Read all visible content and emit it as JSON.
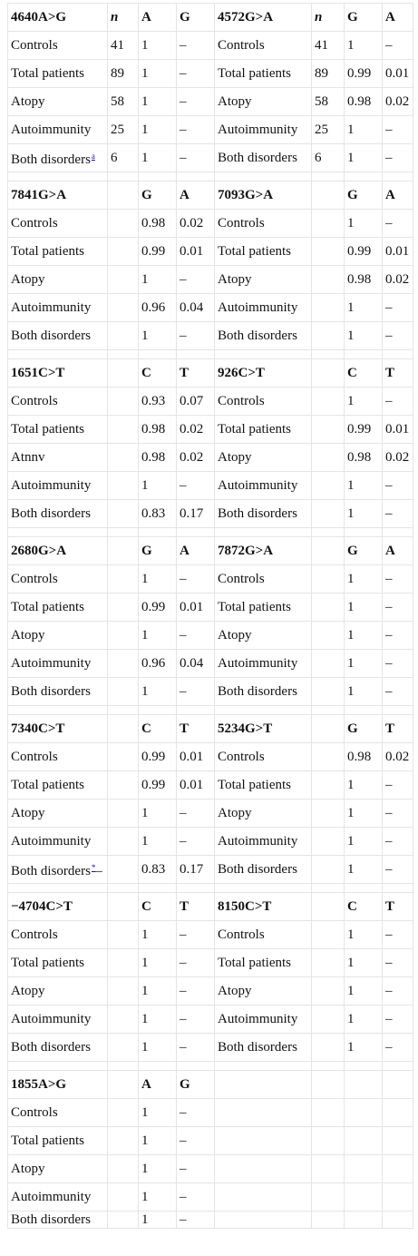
{
  "blocks": [
    {
      "left": {
        "snp": "4640A>G",
        "n_header": "n",
        "a1": "A",
        "a2": "G"
      },
      "right": {
        "snp": "4572G>A",
        "n_header": "n",
        "a1": "G",
        "a2": "A"
      },
      "rows": [
        {
          "l_label": "Controls",
          "l_n": "41",
          "l_v1": "1",
          "l_v2": "–",
          "r_label": "Controls",
          "r_n": "41",
          "r_v1": "1",
          "r_v2": "–"
        },
        {
          "l_label": "Total patients",
          "l_n": "89",
          "l_v1": "1",
          "l_v2": "–",
          "r_label": "Total patients",
          "r_n": "89",
          "r_v1": "0.99",
          "r_v2": "0.01"
        },
        {
          "l_label": "Atopy",
          "l_n": "58",
          "l_v1": "1",
          "l_v2": "–",
          "r_label": "Atopy",
          "r_n": "58",
          "r_v1": "0.98",
          "r_v2": "0.02"
        },
        {
          "l_label": "Autoimmunity",
          "l_n": "25",
          "l_v1": "1",
          "l_v2": "–",
          "r_label": "Autoimmunity",
          "r_n": "25",
          "r_v1": "1",
          "r_v2": "–"
        },
        {
          "l_label": "Both disorders",
          "l_note": "a",
          "l_suffix": "",
          "l_n": "6",
          "l_v1": "1",
          "l_v2": "–",
          "r_label": "Both disorders",
          "r_n": "6",
          "r_v1": "1",
          "r_v2": "–"
        }
      ]
    },
    {
      "left": {
        "snp": "7841G>A",
        "n_header": "",
        "a1": "G",
        "a2": "A"
      },
      "right": {
        "snp": "7093G>A",
        "n_header": "",
        "a1": "G",
        "a2": "A"
      },
      "rows": [
        {
          "l_label": "Controls",
          "l_n": "",
          "l_v1": "0.98",
          "l_v2": "0.02",
          "r_label": "Controls",
          "r_n": "",
          "r_v1": "1",
          "r_v2": "–"
        },
        {
          "l_label": "Total patients",
          "l_n": "",
          "l_v1": "0.99",
          "l_v2": "0.01",
          "r_label": "Total patients",
          "r_n": "",
          "r_v1": "0.99",
          "r_v2": "0.01"
        },
        {
          "l_label": "Atopy",
          "l_n": "",
          "l_v1": "1",
          "l_v2": "–",
          "r_label": "Atopy",
          "r_n": "",
          "r_v1": "0.98",
          "r_v2": "0.02"
        },
        {
          "l_label": "Autoimmunity",
          "l_n": "",
          "l_v1": "0.96",
          "l_v2": "0.04",
          "r_label": "Autoimmunity",
          "r_n": "",
          "r_v1": "1",
          "r_v2": "–"
        },
        {
          "l_label": "Both disorders",
          "l_n": "",
          "l_v1": "1",
          "l_v2": "–",
          "r_label": "Both disorders",
          "r_n": "",
          "r_v1": "1",
          "r_v2": "–"
        }
      ]
    },
    {
      "left": {
        "snp": "1651C>T",
        "n_header": "",
        "a1": "C",
        "a2": "T"
      },
      "right": {
        "snp": "926C>T",
        "n_header": "",
        "a1": "C",
        "a2": "T"
      },
      "rows": [
        {
          "l_label": "Controls",
          "l_n": "",
          "l_v1": "0.93",
          "l_v2": "0.07",
          "r_label": "Controls",
          "r_n": "",
          "r_v1": "1",
          "r_v2": "–"
        },
        {
          "l_label": "Total patients",
          "l_n": "",
          "l_v1": "0.98",
          "l_v2": "0.02",
          "r_label": "Total patients",
          "r_n": "",
          "r_v1": "0.99",
          "r_v2": "0.01"
        },
        {
          "l_label": "Atnnv",
          "l_n": "",
          "l_v1": "0.98",
          "l_v2": "0.02",
          "r_label": "Atopy",
          "r_n": "",
          "r_v1": "0.98",
          "r_v2": "0.02"
        },
        {
          "l_label": "Autoimmunity",
          "l_n": "",
          "l_v1": "1",
          "l_v2": "–",
          "r_label": "Autoimmunity",
          "r_n": "",
          "r_v1": "1",
          "r_v2": "–"
        },
        {
          "l_label": "Both disorders",
          "l_n": "",
          "l_v1": "0.83",
          "l_v2": "0.17",
          "r_label": "Both disorders",
          "r_n": "",
          "r_v1": "1",
          "r_v2": "–"
        }
      ]
    },
    {
      "left": {
        "snp": "2680G>A",
        "n_header": "",
        "a1": "G",
        "a2": "A"
      },
      "right": {
        "snp": "7872G>A",
        "n_header": "",
        "a1": "G",
        "a2": "A"
      },
      "rows": [
        {
          "l_label": "Controls",
          "l_n": "",
          "l_v1": "1",
          "l_v2": "–",
          "r_label": "Controls",
          "r_n": "",
          "r_v1": "1",
          "r_v2": "–"
        },
        {
          "l_label": "Total patients",
          "l_n": "",
          "l_v1": "0.99",
          "l_v2": "0.01",
          "r_label": "Total patients",
          "r_n": "",
          "r_v1": "1",
          "r_v2": "–"
        },
        {
          "l_label": "Atopy",
          "l_n": "",
          "l_v1": "1",
          "l_v2": "–",
          "r_label": "Atopy",
          "r_n": "",
          "r_v1": "1",
          "r_v2": "–"
        },
        {
          "l_label": "Autoimmunity",
          "l_n": "",
          "l_v1": "0.96",
          "l_v2": "0.04",
          "r_label": "Autoimmunity",
          "r_n": "",
          "r_v1": "1",
          "r_v2": "–"
        },
        {
          "l_label": "Both disorders",
          "l_n": "",
          "l_v1": "1",
          "l_v2": "–",
          "r_label": "Both disorders",
          "r_n": "",
          "r_v1": "1",
          "r_v2": "–"
        }
      ]
    },
    {
      "left": {
        "snp": "7340C>T",
        "n_header": "",
        "a1": "C",
        "a2": "T"
      },
      "right": {
        "snp": "5234G>T",
        "n_header": "",
        "a1": "G",
        "a2": "T"
      },
      "rows": [
        {
          "l_label": "Controls",
          "l_n": "",
          "l_v1": "0.99",
          "l_v2": "0.01",
          "r_label": "Controls",
          "r_n": "",
          "r_v1": "0.98",
          "r_v2": "0.02"
        },
        {
          "l_label": "Total patients",
          "l_n": "",
          "l_v1": "0.99",
          "l_v2": "0.01",
          "r_label": "Total patients",
          "r_n": "",
          "r_v1": "1",
          "r_v2": "–"
        },
        {
          "l_label": "Atopy",
          "l_n": "",
          "l_v1": "1",
          "l_v2": "–",
          "r_label": "Atopy",
          "r_n": "",
          "r_v1": "1",
          "r_v2": "–"
        },
        {
          "l_label": "Autoimmunity",
          "l_n": "",
          "l_v1": "1",
          "l_v2": "–",
          "r_label": "Autoimmunity",
          "r_n": "",
          "r_v1": "1",
          "r_v2": "–"
        },
        {
          "l_label": "Both disorders",
          "l_note": "*",
          "l_suffix": "–",
          "l_n": "",
          "l_v1": "0.83",
          "l_v2": "0.17",
          "r_label": "Both disorders",
          "r_n": "",
          "r_v1": "1",
          "r_v2": "–"
        }
      ]
    },
    {
      "left": {
        "snp": "−4704C>T",
        "n_header": "",
        "a1": "C",
        "a2": "T"
      },
      "right": {
        "snp": "8150C>T",
        "n_header": "",
        "a1": "C",
        "a2": "T"
      },
      "rows": [
        {
          "l_label": "Controls",
          "l_n": "",
          "l_v1": "1",
          "l_v2": "–",
          "r_label": "Controls",
          "r_n": "",
          "r_v1": "1",
          "r_v2": "–"
        },
        {
          "l_label": "Total patients",
          "l_n": "",
          "l_v1": "1",
          "l_v2": "–",
          "r_label": "Total patients",
          "r_n": "",
          "r_v1": "1",
          "r_v2": "–"
        },
        {
          "l_label": "Atopy",
          "l_n": "",
          "l_v1": "1",
          "l_v2": "–",
          "r_label": "Atopy",
          "r_n": "",
          "r_v1": "1",
          "r_v2": "–"
        },
        {
          "l_label": "Autoimmunity",
          "l_n": "",
          "l_v1": "1",
          "l_v2": "–",
          "r_label": "Autoimmunity",
          "r_n": "",
          "r_v1": "1",
          "r_v2": "–"
        },
        {
          "l_label": "Both disorders",
          "l_n": "",
          "l_v1": "1",
          "l_v2": "–",
          "r_label": "Both disorders",
          "r_n": "",
          "r_v1": "1",
          "r_v2": "–"
        }
      ]
    },
    {
      "left": {
        "snp": "1855A>G",
        "n_header": "",
        "a1": "A",
        "a2": "G"
      },
      "right": {
        "snp": "",
        "n_header": "",
        "a1": "",
        "a2": ""
      },
      "rows": [
        {
          "l_label": "Controls",
          "l_n": "",
          "l_v1": "1",
          "l_v2": "–",
          "r_label": "",
          "r_n": "",
          "r_v1": "",
          "r_v2": ""
        },
        {
          "l_label": "Total patients",
          "l_n": "",
          "l_v1": "1",
          "l_v2": "–",
          "r_label": "",
          "r_n": "",
          "r_v1": "",
          "r_v2": ""
        },
        {
          "l_label": "Atopy",
          "l_n": "",
          "l_v1": "1",
          "l_v2": "–",
          "r_label": "",
          "r_n": "",
          "r_v1": "",
          "r_v2": ""
        },
        {
          "l_label": "Autoimmunity",
          "l_n": "",
          "l_v1": "1",
          "l_v2": "–",
          "r_label": "",
          "r_n": "",
          "r_v1": "",
          "r_v2": ""
        },
        {
          "l_label": "Both disorders",
          "l_n": "",
          "l_v1": "1",
          "l_v2": "–",
          "r_label": "",
          "r_n": "",
          "r_v1": "",
          "r_v2": ""
        }
      ]
    }
  ]
}
